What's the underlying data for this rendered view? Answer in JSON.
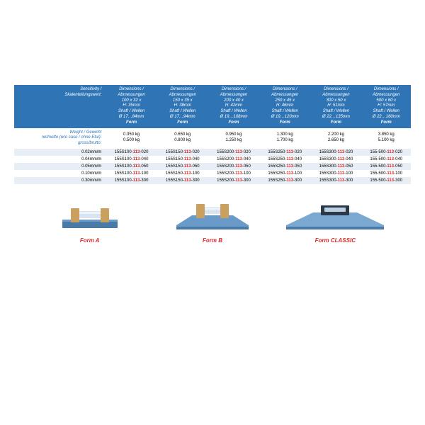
{
  "table": {
    "header": {
      "sensitivity_label": "Sensitivity /\nSkalenteilungswert:",
      "columns": [
        {
          "lines": [
            "Dimensions /",
            "Abmessungen",
            "100 x 32 x",
            "H: 35mm",
            "Shaft / Wellen",
            "Ø 17…84mm"
          ],
          "form": "Form <A>"
        },
        {
          "lines": [
            "Dimensions /",
            "Abmessungen",
            "150 x 35 x",
            "H: 38mm",
            "Shaft / Wellen",
            "Ø 17…94mm"
          ],
          "form": "Form <A>"
        },
        {
          "lines": [
            "Dimensions /",
            "Abmessungen",
            "200 x 40 x",
            "H: 42mm",
            "Shaft / Wellen",
            "Ø 19…108mm"
          ],
          "form": "Form <B>"
        },
        {
          "lines": [
            "Dimensions /",
            "Abmessungen",
            "250 x 45 x",
            "H: 46mm",
            "Shaft / Wellen",
            "Ø 19…120mm"
          ],
          "form": "Form <B>"
        },
        {
          "lines": [
            "Dimensions /",
            "Abmessungen",
            "300 x 50 x",
            "H: 51mm",
            "Shaft / Wellen",
            "Ø 22…135mm"
          ],
          "form": "Form <B>"
        },
        {
          "lines": [
            "Dimensions /",
            "Abmessungen",
            "500 x 60 x",
            "H: 57mm",
            "Shaft / Wellen",
            "Ø 22…160mm"
          ],
          "form": "Form <CLASSIC>"
        }
      ]
    },
    "weight_row": {
      "label": "Weight / Gewicht\nnet/netto (w/o case / ohne Etui):\ngross/brutto:",
      "values": [
        [
          "0.350 kg",
          "0.500 kg"
        ],
        [
          "0.650 kg",
          "0.800 kg"
        ],
        [
          "0.950 kg",
          "1.250 kg"
        ],
        [
          "1.300 kg",
          "1.700 kg"
        ],
        [
          "2.200 kg",
          "2.650 kg"
        ],
        [
          "3.850 kg",
          "5.100 kg"
        ]
      ]
    },
    "data_rows": [
      {
        "sens": "0.02mm/m",
        "shaded": true,
        "skus": [
          "155S100-113-020",
          "155S150-113-020",
          "155S200-113-020",
          "155S250-113-020",
          "155S300-113-020",
          "155-500-113-020"
        ]
      },
      {
        "sens": "0.04mm/m",
        "shaded": false,
        "skus": [
          "155S100-113-040",
          "155S150-113-040",
          "155S200-113-040",
          "155S250-113-040",
          "155S300-113-040",
          "155-500-113-040"
        ]
      },
      {
        "sens": "0.05mm/m",
        "shaded": true,
        "skus": [
          "155S100-113-050",
          "155S150-113-050",
          "155S200-113-050",
          "155S250-113-050",
          "155S300-113-050",
          "155-500-113-050"
        ]
      },
      {
        "sens": "0.10mm/m",
        "shaded": false,
        "skus": [
          "155S100-113-100",
          "155S150-113-100",
          "155S200-113-100",
          "155S250-113-100",
          "155S300-113-100",
          "155-500-113-100"
        ]
      },
      {
        "sens": "0.30mm/m",
        "shaded": true,
        "skus": [
          "155S100-113-300",
          "155S150-113-300",
          "155S200-113-300",
          "155S250-113-300",
          "155S300-113-300",
          "155-500-113-300"
        ]
      }
    ]
  },
  "products": [
    {
      "label": "Form A"
    },
    {
      "label": "Form B"
    },
    {
      "label": "Form CLASSIC"
    }
  ],
  "colors": {
    "header_bg": "#2f75b5",
    "header_text": "#ffffff",
    "shaded_row": "#e8eef5",
    "red": "#d92b2b",
    "blue_text": "#2f75b5",
    "body_bg": "#ffffff",
    "tool_body": "#4a7ba8",
    "tool_brass": "#c9a05f",
    "tool_dark": "#2a3a4a"
  }
}
